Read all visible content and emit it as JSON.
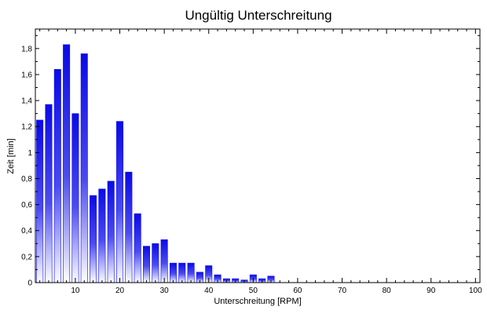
{
  "chart_data": {
    "type": "bar",
    "title": "Ungültig Unterschreitung",
    "xlabel": "Unterschreitung [RPM]",
    "ylabel": "Zeit [min]",
    "xlim": [
      1,
      101
    ],
    "ylim": [
      0,
      1.95
    ],
    "grid": false,
    "x_ticks": [
      "10",
      "20",
      "30",
      "40",
      "50",
      "60",
      "70",
      "80",
      "90",
      "100"
    ],
    "x_tick_values": [
      10,
      20,
      30,
      40,
      50,
      60,
      70,
      80,
      90,
      100
    ],
    "y_ticks": [
      "0",
      "0,2",
      "0,4",
      "0,6",
      "0,8",
      "1",
      "1,2",
      "1,4",
      "1,6",
      "1,8"
    ],
    "y_tick_values": [
      0,
      0.2,
      0.4,
      0.6,
      0.8,
      1.0,
      1.2,
      1.4,
      1.6,
      1.8
    ],
    "x": [
      2,
      4,
      6,
      8,
      10,
      12,
      14,
      16,
      18,
      20,
      22,
      24,
      26,
      28,
      30,
      32,
      34,
      36,
      38,
      40,
      42,
      44,
      46,
      48,
      50,
      52,
      54
    ],
    "values": [
      1.25,
      1.37,
      1.64,
      1.83,
      1.3,
      1.76,
      0.67,
      0.72,
      0.78,
      1.24,
      0.85,
      0.53,
      0.28,
      0.3,
      0.33,
      0.15,
      0.15,
      0.15,
      0.08,
      0.13,
      0.06,
      0.03,
      0.03,
      0.02,
      0.06,
      0.03,
      0.05
    ],
    "bar_color": "#1010ee"
  }
}
